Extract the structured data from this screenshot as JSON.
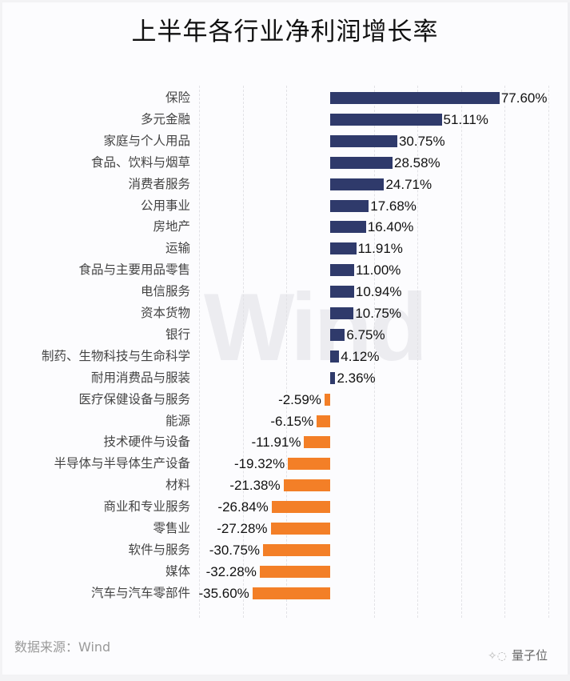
{
  "title": "上半年各行业净利润增长率",
  "source": "数据来源：Wind",
  "watermark": "Wind",
  "brand": {
    "icon": "wechat-bubble-icon",
    "name": "量子位"
  },
  "colors": {
    "positive": "#2f3a6b",
    "negative": "#f37f27"
  },
  "chart_data": {
    "type": "bar",
    "orientation": "horizontal",
    "title": "上半年各行业净利润增长率",
    "xlabel": "",
    "ylabel": "",
    "unit": "%",
    "xlim": [
      -60,
      100
    ],
    "grid": true,
    "legend": null,
    "categories": [
      "保险",
      "多元金融",
      "家庭与个人用品",
      "食品、饮料与烟草",
      "消费者服务",
      "公用事业",
      "房地产",
      "运输",
      "食品与主要用品零售",
      "电信服务",
      "资本货物",
      "银行",
      "制药、生物科技与生命科学",
      "耐用消费品与服装",
      "医疗保健设备与服务",
      "能源",
      "技术硬件与设备",
      "半导体与半导体生产设备",
      "材料",
      "商业和专业服务",
      "零售业",
      "软件与服务",
      "媒体",
      "汽车与汽车零部件"
    ],
    "values": [
      77.6,
      51.11,
      30.75,
      28.58,
      24.71,
      17.68,
      16.4,
      11.91,
      11.0,
      10.94,
      10.75,
      6.75,
      4.12,
      2.36,
      -2.59,
      -6.15,
      -11.91,
      -19.32,
      -21.38,
      -26.84,
      -27.28,
      -30.75,
      -32.28,
      -35.6
    ],
    "labels": [
      "77.60%",
      "51.11%",
      "30.75%",
      "28.58%",
      "24.71%",
      "17.68%",
      "16.40%",
      "11.91%",
      "11.00%",
      "10.94%",
      "10.75%",
      "6.75%",
      "4.12%",
      "2.36%",
      "-2.59%",
      "-6.15%",
      "-11.91%",
      "-19.32%",
      "-21.38%",
      "-26.84%",
      "-27.28%",
      "-30.75%",
      "-32.28%",
      "-35.60%"
    ],
    "source": "Wind"
  }
}
